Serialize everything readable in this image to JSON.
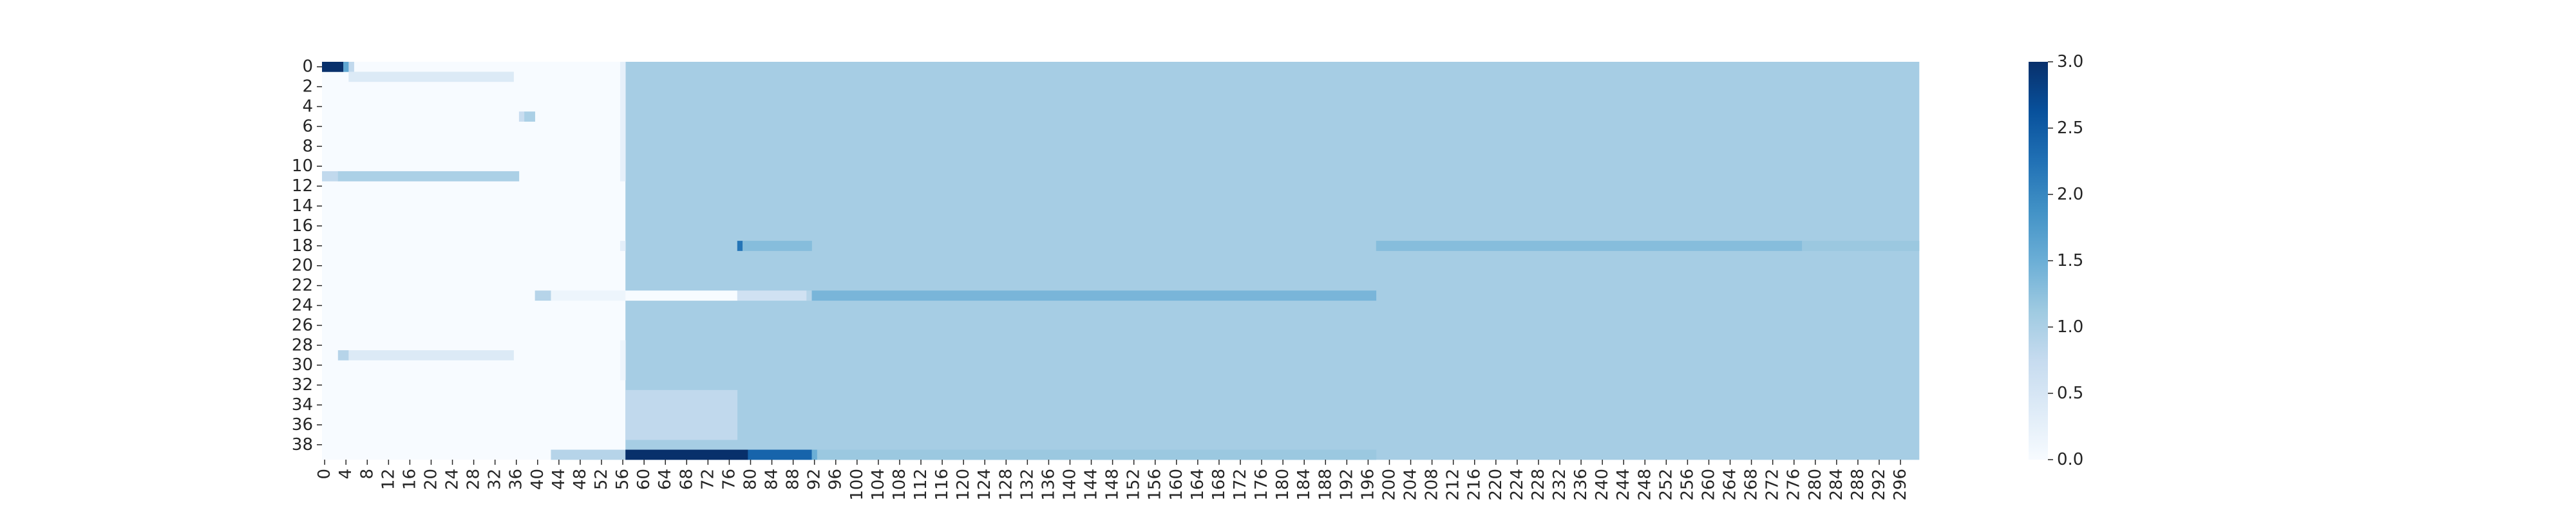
{
  "chart_data": {
    "type": "heatmap",
    "title": "",
    "xlabel": "",
    "ylabel": "",
    "rows": 40,
    "cols": 300,
    "x_tick_step": 4,
    "y_tick_step": 2,
    "colormap": "Blues",
    "vmin": 0.0,
    "vmax": 3.0,
    "colorbar_ticks": [
      "0.0",
      "0.5",
      "1.0",
      "1.5",
      "2.0",
      "2.5",
      "3.0"
    ],
    "colors": {
      "low": "#f7fbff",
      "mid": "#6baed6",
      "high": "#08306b"
    },
    "base_value": 0.0,
    "block_value": 1.05,
    "regions": [
      {
        "rows": [
          0,
          39
        ],
        "cols": [
          57,
          299
        ],
        "value": 1.05
      },
      {
        "rows": [
          0,
          0
        ],
        "cols": [
          0,
          3
        ],
        "value": 3.0
      },
      {
        "rows": [
          0,
          0
        ],
        "cols": [
          4,
          4
        ],
        "value": 1.6
      },
      {
        "rows": [
          0,
          0
        ],
        "cols": [
          5,
          5
        ],
        "value": 0.8
      },
      {
        "rows": [
          1,
          1
        ],
        "cols": [
          5,
          35
        ],
        "value": 0.4
      },
      {
        "rows": [
          5,
          5
        ],
        "cols": [
          37,
          37
        ],
        "value": 0.7
      },
      {
        "rows": [
          5,
          5
        ],
        "cols": [
          38,
          39
        ],
        "value": 1.0
      },
      {
        "rows": [
          11,
          11
        ],
        "cols": [
          0,
          2
        ],
        "value": 0.8
      },
      {
        "rows": [
          11,
          11
        ],
        "cols": [
          3,
          36
        ],
        "value": 1.0
      },
      {
        "rows": [
          29,
          29
        ],
        "cols": [
          3,
          4
        ],
        "value": 0.9
      },
      {
        "rows": [
          29,
          29
        ],
        "cols": [
          5,
          35
        ],
        "value": 0.4
      },
      {
        "rows": [
          0,
          11
        ],
        "cols": [
          56,
          56
        ],
        "value": 0.25
      },
      {
        "rows": [
          28,
          31
        ],
        "cols": [
          56,
          56
        ],
        "value": 0.15
      },
      {
        "rows": [
          18,
          18
        ],
        "cols": [
          56,
          56
        ],
        "value": 0.3
      },
      {
        "rows": [
          18,
          18
        ],
        "cols": [
          78,
          78
        ],
        "value": 2.2
      },
      {
        "rows": [
          18,
          18
        ],
        "cols": [
          79,
          91
        ],
        "value": 1.3
      },
      {
        "rows": [
          18,
          18
        ],
        "cols": [
          198,
          277
        ],
        "value": 1.3
      },
      {
        "rows": [
          18,
          18
        ],
        "cols": [
          278,
          299
        ],
        "value": 1.15
      },
      {
        "rows": [
          23,
          23
        ],
        "cols": [
          40,
          42
        ],
        "value": 0.9
      },
      {
        "rows": [
          23,
          23
        ],
        "cols": [
          43,
          56
        ],
        "value": 0.15
      },
      {
        "rows": [
          23,
          23
        ],
        "cols": [
          57,
          77
        ],
        "value": 0.0
      },
      {
        "rows": [
          23,
          23
        ],
        "cols": [
          78,
          90
        ],
        "value": 0.6
      },
      {
        "rows": [
          23,
          23
        ],
        "cols": [
          91,
          91
        ],
        "value": 0.9
      },
      {
        "rows": [
          23,
          23
        ],
        "cols": [
          92,
          197
        ],
        "value": 1.4
      },
      {
        "rows": [
          33,
          37
        ],
        "cols": [
          57,
          77
        ],
        "value": 0.8
      },
      {
        "rows": [
          39,
          39
        ],
        "cols": [
          43,
          56
        ],
        "value": 0.9
      },
      {
        "rows": [
          39,
          39
        ],
        "cols": [
          57,
          79
        ],
        "value": 3.0
      },
      {
        "rows": [
          39,
          39
        ],
        "cols": [
          80,
          91
        ],
        "value": 2.4
      },
      {
        "rows": [
          39,
          39
        ],
        "cols": [
          92,
          92
        ],
        "value": 1.5
      },
      {
        "rows": [
          39,
          39
        ],
        "cols": [
          93,
          197
        ],
        "value": 1.15
      }
    ]
  }
}
